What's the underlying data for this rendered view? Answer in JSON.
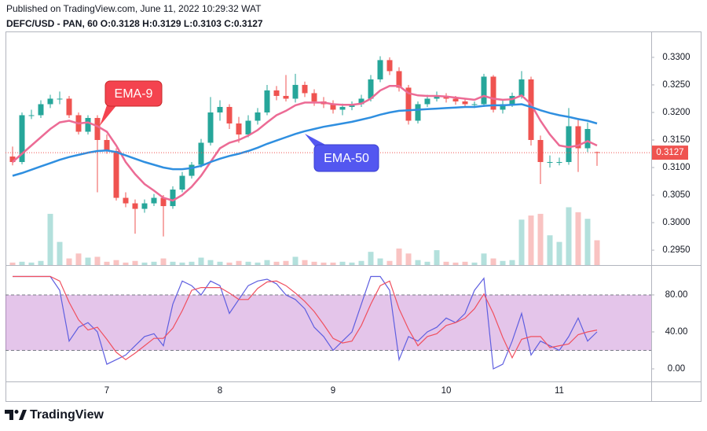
{
  "chart_data": [
    {
      "type": "candlestick",
      "title": "Published on TradingView.com, June 11, 2022 10:29:32 WAT",
      "subtitle": "DEFC/USD - PAN, 60 O:0.3128 H:0.3129 L:0.3103 C:0.3127",
      "footer": "TradingView",
      "categories": [
        null,
        null,
        null,
        null,
        null,
        null,
        null,
        null,
        null,
        null,
        "7",
        null,
        null,
        null,
        null,
        null,
        null,
        null,
        null,
        null,
        null,
        null,
        "8",
        null,
        null,
        null,
        null,
        null,
        null,
        null,
        null,
        null,
        null,
        null,
        "9",
        null,
        null,
        null,
        null,
        null,
        null,
        null,
        null,
        null,
        null,
        null,
        "10",
        null,
        null,
        null,
        null,
        null,
        null,
        null,
        null,
        null,
        null,
        null,
        "11",
        null,
        null,
        null,
        null
      ],
      "open": [
        0.312,
        0.311,
        0.3195,
        0.3195,
        0.3215,
        0.3225,
        0.3225,
        0.3195,
        0.3165,
        0.319,
        0.315,
        0.313,
        0.3045,
        0.3035,
        0.3025,
        0.3035,
        0.3045,
        0.303,
        0.306,
        0.3085,
        0.3105,
        0.3145,
        0.32,
        0.321,
        0.318,
        0.316,
        0.3185,
        0.32,
        0.324,
        0.323,
        0.3225,
        0.325,
        0.3235,
        0.322,
        0.3215,
        0.3205,
        0.321,
        0.3215,
        0.3225,
        0.326,
        0.3295,
        0.3275,
        0.3245,
        0.3185,
        0.3215,
        0.3225,
        0.323,
        0.3225,
        0.322,
        0.3215,
        0.3215,
        0.3265,
        0.3205,
        0.3215,
        0.323,
        0.326,
        0.315,
        0.311,
        0.311,
        0.311,
        0.3175,
        0.3135,
        0.3128
      ],
      "high": [
        0.3138,
        0.32,
        0.3205,
        0.3222,
        0.3232,
        0.3238,
        0.323,
        0.32,
        0.3195,
        0.3195,
        0.316,
        0.3135,
        0.3055,
        0.3042,
        0.3042,
        0.3052,
        0.305,
        0.3066,
        0.3092,
        0.311,
        0.3152,
        0.3228,
        0.3222,
        0.3215,
        0.3192,
        0.3195,
        0.3208,
        0.325,
        0.3248,
        0.3268,
        0.327,
        0.3256,
        0.3242,
        0.3228,
        0.3222,
        0.3216,
        0.322,
        0.3232,
        0.3268,
        0.3302,
        0.33,
        0.3282,
        0.325,
        0.322,
        0.3232,
        0.3238,
        0.3235,
        0.323,
        0.3225,
        0.322,
        0.327,
        0.3268,
        0.3222,
        0.3236,
        0.3275,
        0.3265,
        0.3158,
        0.3122,
        0.3118,
        0.3208,
        0.319,
        0.3182,
        0.3129
      ],
      "low": [
        0.3104,
        0.3106,
        0.3188,
        0.319,
        0.3208,
        0.3215,
        0.319,
        0.316,
        0.316,
        0.3055,
        0.3125,
        0.304,
        0.3028,
        0.298,
        0.3018,
        0.303,
        0.2975,
        0.3025,
        0.3055,
        0.308,
        0.31,
        0.314,
        0.3185,
        0.317,
        0.3145,
        0.3155,
        0.3178,
        0.3195,
        0.3222,
        0.322,
        0.3218,
        0.3228,
        0.3212,
        0.3208,
        0.3198,
        0.3195,
        0.3204,
        0.321,
        0.322,
        0.3255,
        0.3268,
        0.3238,
        0.3178,
        0.318,
        0.321,
        0.322,
        0.3218,
        0.3214,
        0.321,
        0.3208,
        0.321,
        0.32,
        0.3198,
        0.321,
        0.3225,
        0.314,
        0.307,
        0.31,
        0.3104,
        0.3105,
        0.3092,
        0.3128,
        0.3103
      ],
      "close": [
        0.311,
        0.3195,
        0.3195,
        0.3215,
        0.3225,
        0.3225,
        0.3195,
        0.3165,
        0.319,
        0.315,
        0.313,
        0.3045,
        0.3035,
        0.3025,
        0.3035,
        0.3045,
        0.303,
        0.306,
        0.3085,
        0.3105,
        0.3145,
        0.32,
        0.321,
        0.318,
        0.316,
        0.3185,
        0.32,
        0.324,
        0.323,
        0.3225,
        0.325,
        0.3235,
        0.322,
        0.3215,
        0.3205,
        0.321,
        0.3215,
        0.3225,
        0.326,
        0.3295,
        0.3275,
        0.3245,
        0.3185,
        0.3215,
        0.3225,
        0.323,
        0.3225,
        0.322,
        0.3215,
        0.3215,
        0.3265,
        0.3205,
        0.3215,
        0.323,
        0.326,
        0.315,
        0.311,
        0.311,
        0.311,
        0.3175,
        0.3135,
        0.317,
        0.3127
      ],
      "up_color": "#26a69a",
      "down_color": "#ef5350",
      "volume": [
        3,
        4,
        3,
        5,
        62,
        28,
        8,
        14,
        9,
        10,
        4,
        6,
        3,
        5,
        3,
        4,
        8,
        4,
        3,
        4,
        9,
        6,
        4,
        3,
        5,
        4,
        3,
        6,
        4,
        5,
        10,
        6,
        4,
        3,
        3,
        4,
        3,
        5,
        16,
        8,
        5,
        20,
        14,
        6,
        4,
        18,
        4,
        3,
        4,
        3,
        14,
        8,
        5,
        6,
        55,
        60,
        62,
        36,
        28,
        70,
        64,
        56,
        30
      ],
      "volume_lim": [
        0,
        100
      ],
      "volume_up_color": "rgba(38,166,154,0.35)",
      "volume_down_color": "rgba(239,83,80,0.35)",
      "series": [
        {
          "name": "EMA-9",
          "color": "#ec6b95",
          "values": [
            0.311,
            0.3125,
            0.314,
            0.3155,
            0.317,
            0.3182,
            0.3185,
            0.318,
            0.3182,
            0.3175,
            0.3165,
            0.314,
            0.311,
            0.3088,
            0.307,
            0.3058,
            0.3045,
            0.304,
            0.305,
            0.3065,
            0.3085,
            0.311,
            0.3135,
            0.3145,
            0.315,
            0.3158,
            0.3168,
            0.3182,
            0.3195,
            0.3203,
            0.3213,
            0.3218,
            0.3218,
            0.3218,
            0.3215,
            0.3214,
            0.3214,
            0.3216,
            0.3225,
            0.324,
            0.3248,
            0.3248,
            0.3235,
            0.3231,
            0.323,
            0.323,
            0.3229,
            0.3227,
            0.3225,
            0.3223,
            0.323,
            0.3225,
            0.3223,
            0.3224,
            0.3231,
            0.3215,
            0.3185,
            0.316,
            0.314,
            0.3137,
            0.314,
            0.3148,
            0.314
          ]
        },
        {
          "name": "EMA-50",
          "color": "#2f8fe0",
          "values": [
            0.3085,
            0.309,
            0.3096,
            0.3102,
            0.3108,
            0.3114,
            0.3119,
            0.3123,
            0.3127,
            0.313,
            0.3131,
            0.3128,
            0.3122,
            0.3116,
            0.311,
            0.3105,
            0.31,
            0.3097,
            0.3097,
            0.3099,
            0.3103,
            0.311,
            0.3116,
            0.3121,
            0.3125,
            0.313,
            0.3136,
            0.3143,
            0.3149,
            0.3155,
            0.3161,
            0.3166,
            0.317,
            0.3174,
            0.3177,
            0.318,
            0.3183,
            0.3187,
            0.3191,
            0.3196,
            0.32,
            0.3203,
            0.3204,
            0.3205,
            0.3206,
            0.3207,
            0.3208,
            0.3209,
            0.321,
            0.321,
            0.3212,
            0.3213,
            0.3213,
            0.3214,
            0.3215,
            0.321,
            0.3204,
            0.3199,
            0.3195,
            0.3192,
            0.3188,
            0.3185,
            0.318
          ]
        }
      ],
      "last_price": {
        "value": 0.3127,
        "label": "0.3127"
      },
      "ylim": [
        0.2923,
        0.3347
      ],
      "yticks": [
        {
          "value": 0.295,
          "label": "0.2950"
        },
        {
          "value": 0.3,
          "label": "0.3000"
        },
        {
          "value": 0.305,
          "label": "0.3050"
        },
        {
          "value": 0.31,
          "label": "0.3100"
        },
        {
          "value": 0.315,
          "label": "0.3150"
        },
        {
          "value": 0.32,
          "label": "0.3200"
        },
        {
          "value": 0.325,
          "label": "0.3250"
        },
        {
          "value": 0.33,
          "label": "0.3300"
        }
      ]
    },
    {
      "type": "line",
      "series": [
        {
          "color": "#5f5fe0",
          "values": [
            100,
            100,
            100,
            100,
            100,
            85,
            30,
            45,
            50,
            40,
            5,
            10,
            15,
            25,
            35,
            38,
            25,
            70,
            95,
            90,
            80,
            95,
            90,
            60,
            75,
            90,
            95,
            97,
            92,
            80,
            75,
            65,
            45,
            35,
            20,
            30,
            40,
            70,
            100,
            100,
            85,
            10,
            35,
            30,
            40,
            45,
            55,
            50,
            60,
            85,
            98,
            0,
            5,
            30,
            60,
            15,
            30,
            25,
            20,
            35,
            55,
            30,
            40
          ]
        },
        {
          "color": "#f0505f",
          "values": [
            100,
            100,
            100,
            100,
            100,
            95,
            72,
            53,
            42,
            45,
            32,
            18,
            10,
            17,
            25,
            33,
            33,
            44,
            63,
            85,
            88,
            88,
            88,
            82,
            75,
            75,
            87,
            94,
            95,
            90,
            82,
            73,
            62,
            48,
            33,
            28,
            30,
            47,
            70,
            90,
            95,
            65,
            43,
            25,
            35,
            38,
            47,
            50,
            55,
            65,
            81,
            60,
            34,
            12,
            32,
            35,
            35,
            23,
            25,
            27,
            37,
            40,
            42
          ]
        }
      ],
      "band": [
        20,
        80
      ],
      "band_color": "rgba(156,39,176,0.27)",
      "ylim": [
        -13.6,
        112.3
      ],
      "yticks": [
        {
          "value": 0,
          "label": "0.00"
        },
        {
          "value": 40,
          "label": "40.00"
        },
        {
          "value": 80,
          "label": "80.00"
        }
      ]
    }
  ]
}
